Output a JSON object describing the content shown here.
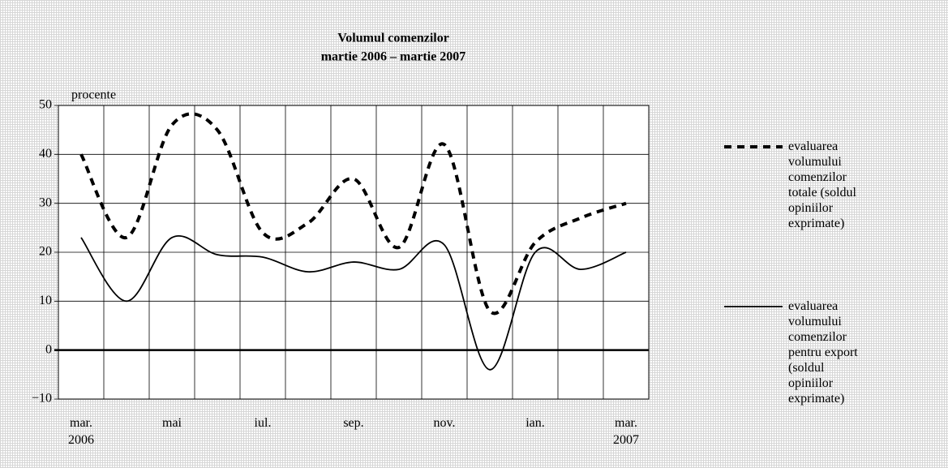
{
  "chart_data": {
    "type": "line",
    "title": "Volumul comenzilor",
    "subtitle": "martie 2006 – martie 2007",
    "y_label": "procente",
    "categories": [
      "mar. 2006",
      null,
      "mai",
      null,
      "iul.",
      null,
      "sep.",
      null,
      "nov.",
      null,
      "ian.",
      null,
      "mar. 2007"
    ],
    "series": [
      {
        "name": "evaluarea volumului comenzilor totale (soldul opiniilor exprimate)",
        "color": "#000000",
        "dash": true,
        "values": [
          40,
          23,
          46,
          45,
          24,
          26,
          35,
          21,
          42,
          8,
          22,
          27,
          30
        ]
      },
      {
        "name": "evaluarea volumului comenzilor pentru export (soldul opiniilor exprimate)",
        "color": "#000000",
        "dash": false,
        "values": [
          23,
          10,
          23,
          19.5,
          19,
          16,
          18,
          16.5,
          21.5,
          -4,
          20,
          16.5,
          20
        ]
      }
    ],
    "ylim": [
      -10,
      50
    ],
    "yticks": [
      {
        "value": -10,
        "label": "−10"
      },
      0,
      10,
      20,
      30,
      40,
      50
    ],
    "grid": true
  }
}
